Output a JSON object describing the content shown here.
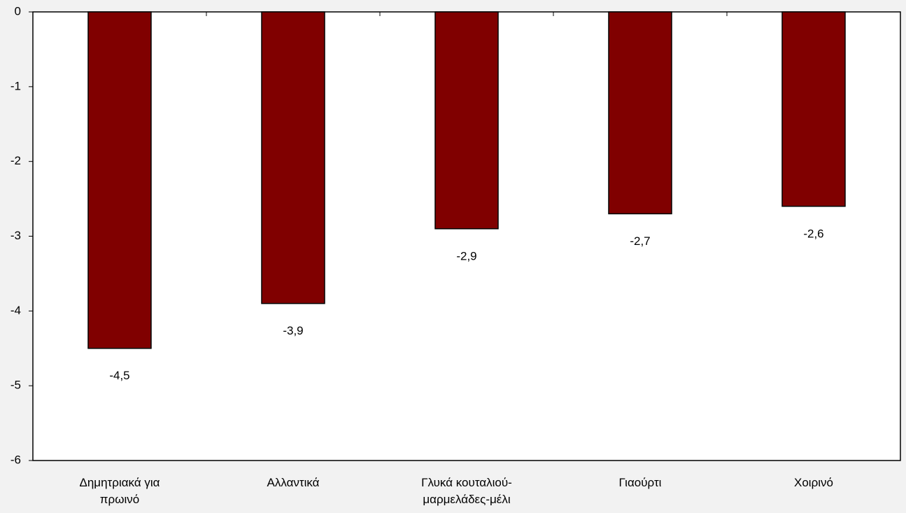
{
  "chart_data": {
    "type": "bar",
    "categories": [
      "Δημητριακά για πρωινό",
      "Αλλαντικά",
      "Γλυκά κουταλιού-μαρμελάδες-μέλι",
      "Γιαούρτι",
      "Χοιρινό"
    ],
    "values": [
      -4.5,
      -3.9,
      -2.9,
      -2.7,
      -2.6
    ],
    "value_labels": [
      "-4,5",
      "-3,9",
      "-2,9",
      "-2,7",
      "-2,6"
    ],
    "color": "#800000",
    "ylim": [
      -6,
      0
    ],
    "yticks": [
      0,
      -1,
      -2,
      -3,
      -4,
      -5,
      -6
    ]
  }
}
